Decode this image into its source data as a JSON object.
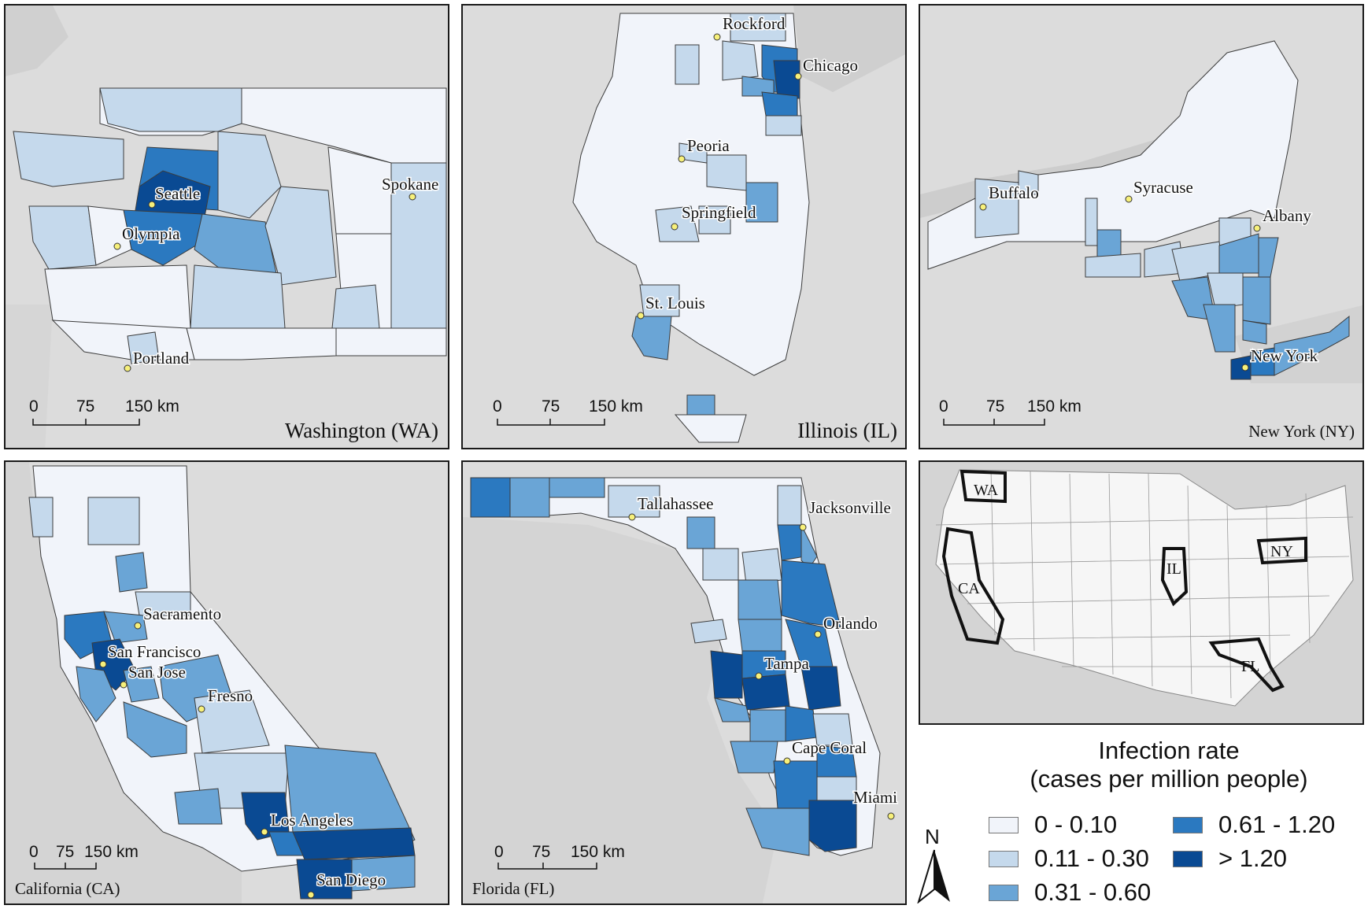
{
  "colors": {
    "background": "#dcdcdc",
    "water": "#d0d0d0",
    "county_border": "#3c3c3c",
    "city_marker": "#f7f07a"
  },
  "panels": {
    "wa": {
      "title": "Washington (WA)",
      "cities": [
        "Seattle",
        "Olympia",
        "Spokane",
        "Portland"
      ],
      "scale": [
        "0",
        "75",
        "150 km"
      ]
    },
    "il": {
      "title": "Illinois (IL)",
      "cities": [
        "Rockford",
        "Chicago",
        "Peoria",
        "Springfield",
        "St. Louis"
      ],
      "scale": [
        "0",
        "75",
        "150 km"
      ]
    },
    "ny": {
      "title": "New York (NY)",
      "cities": [
        "Buffalo",
        "Syracuse",
        "Albany",
        "New York"
      ],
      "scale": [
        "0",
        "75",
        "150 km"
      ]
    },
    "ca": {
      "title": "California (CA)",
      "cities": [
        "Sacramento",
        "San Francisco",
        "San Jose",
        "Fresno",
        "Los Angeles",
        "San Diego"
      ],
      "scale": [
        "0",
        "75",
        "150 km"
      ]
    },
    "fl": {
      "title": "Florida (FL)",
      "cities": [
        "Tallahassee",
        "Jacksonville",
        "Orlando",
        "Tampa",
        "Cape Coral",
        "Miami"
      ],
      "scale": [
        "0",
        "75",
        "150 km"
      ]
    },
    "us": {
      "labels": [
        "WA",
        "CA",
        "IL",
        "NY",
        "FL"
      ]
    }
  },
  "legend": {
    "title_line1": "Infection rate",
    "title_line2": "(cases per million people)",
    "north": "N",
    "classes": [
      {
        "label": "0 - 0.10",
        "color": "#f1f4fa"
      },
      {
        "label": "0.11 - 0.30",
        "color": "#c5d9ec"
      },
      {
        "label": "0.31 - 0.60",
        "color": "#6aa5d6"
      },
      {
        "label": "0.61 - 1.20",
        "color": "#2b79c0"
      },
      {
        "label": "> 1.20",
        "color": "#0a4a93"
      }
    ]
  }
}
